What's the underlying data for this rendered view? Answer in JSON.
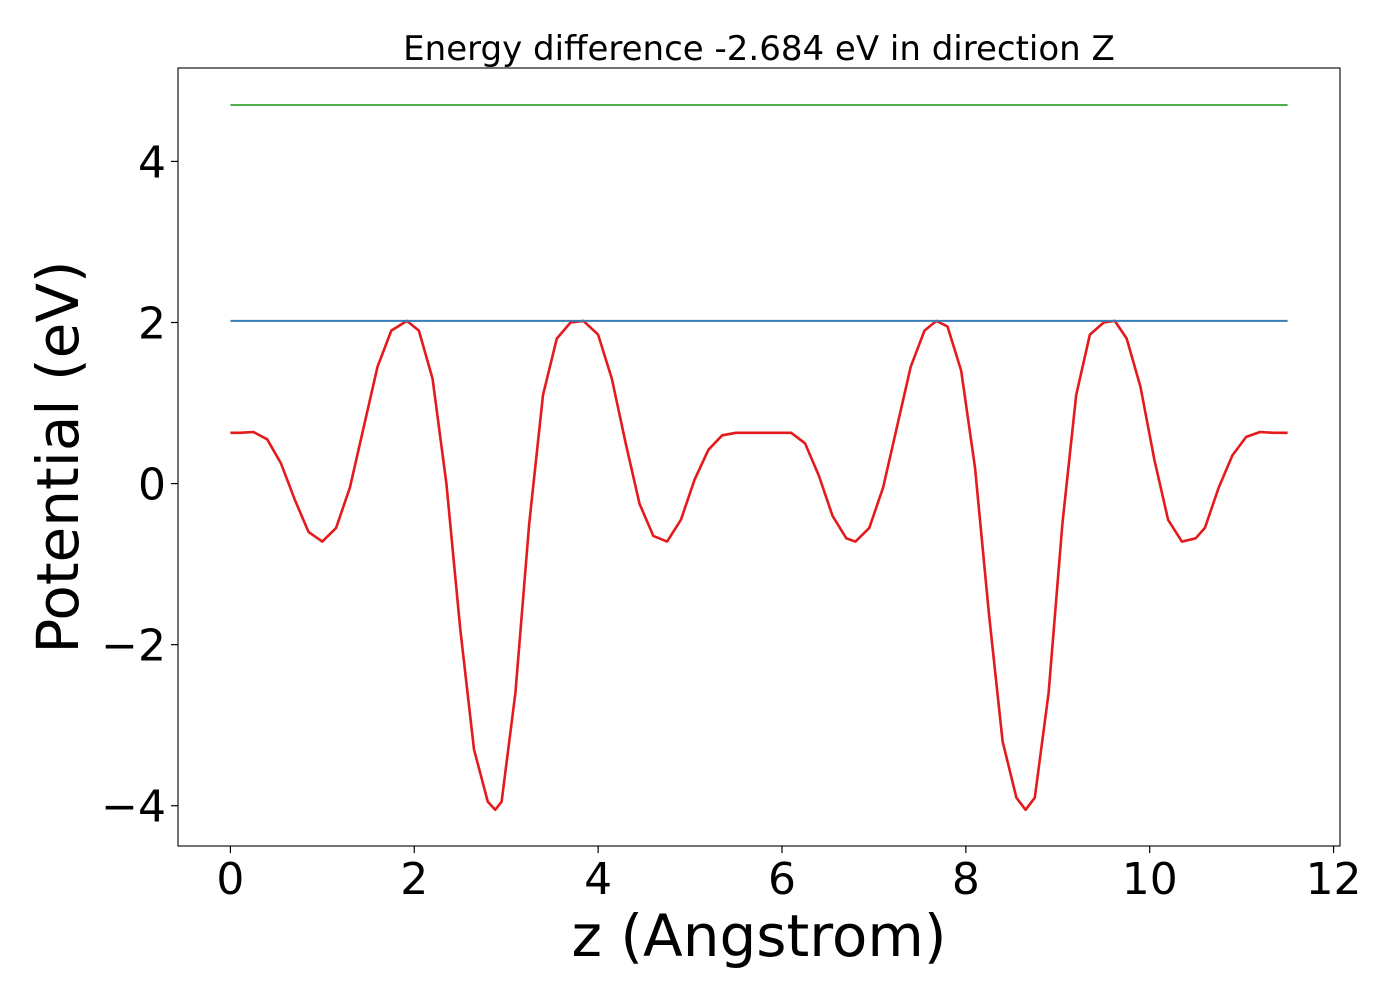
{
  "chart_data": {
    "type": "line",
    "title": "Energy difference -2.684 eV in direction Z",
    "xlabel": "z (Angstrom)",
    "ylabel": "Potential (eV)",
    "xlim": [
      -0.57,
      12.07
    ],
    "ylim": [
      -4.5,
      5.16
    ],
    "xticks": [
      0,
      2,
      4,
      6,
      8,
      10,
      12
    ],
    "xtick_labels": [
      "0",
      "2",
      "4",
      "6",
      "8",
      "10",
      "12"
    ],
    "yticks": [
      -4,
      -2,
      0,
      2,
      4
    ],
    "ytick_labels": [
      "−4",
      "−2",
      "0",
      "2",
      "4"
    ],
    "grid": false,
    "series": [
      {
        "color": "#e41a1c",
        "x": [
          0,
          0.1,
          0.25,
          0.4,
          0.55,
          0.7,
          0.85,
          1.0,
          1.15,
          1.3,
          1.45,
          1.6,
          1.75,
          1.92,
          2.05,
          2.2,
          2.35,
          2.5,
          2.65,
          2.8,
          2.88,
          2.95,
          3.1,
          3.25,
          3.4,
          3.55,
          3.7,
          3.84,
          4.0,
          4.15,
          4.3,
          4.45,
          4.6,
          4.75,
          4.9,
          5.05,
          5.2,
          5.35,
          5.5,
          5.65,
          5.8,
          5.95,
          6.1,
          6.25,
          6.4,
          6.55,
          6.7,
          6.8,
          6.95,
          7.1,
          7.25,
          7.4,
          7.55,
          7.68,
          7.8,
          7.95,
          8.1,
          8.25,
          8.4,
          8.55,
          8.65,
          8.75,
          8.9,
          9.05,
          9.2,
          9.35,
          9.5,
          9.62,
          9.75,
          9.9,
          10.05,
          10.2,
          10.35,
          10.5,
          10.6,
          10.75,
          10.9,
          11.05,
          11.2,
          11.35,
          11.5
        ],
        "y": [
          0.63,
          0.63,
          0.64,
          0.55,
          0.25,
          -0.2,
          -0.6,
          -0.72,
          -0.55,
          -0.05,
          0.7,
          1.45,
          1.9,
          2.02,
          1.9,
          1.3,
          0.0,
          -1.8,
          -3.3,
          -3.95,
          -4.05,
          -3.95,
          -2.6,
          -0.5,
          1.1,
          1.8,
          2.0,
          2.02,
          1.85,
          1.3,
          0.5,
          -0.25,
          -0.65,
          -0.72,
          -0.45,
          0.05,
          0.42,
          0.6,
          0.63,
          0.63,
          0.63,
          0.63,
          0.63,
          0.5,
          0.1,
          -0.4,
          -0.68,
          -0.72,
          -0.55,
          -0.05,
          0.7,
          1.45,
          1.9,
          2.02,
          1.95,
          1.4,
          0.2,
          -1.6,
          -3.2,
          -3.9,
          -4.05,
          -3.9,
          -2.6,
          -0.5,
          1.1,
          1.85,
          2.0,
          2.02,
          1.8,
          1.2,
          0.3,
          -0.45,
          -0.72,
          -0.68,
          -0.55,
          -0.05,
          0.35,
          0.58,
          0.64,
          0.63,
          0.63
        ]
      },
      {
        "color": "#377eb8",
        "x": [
          0,
          11.5
        ],
        "y": [
          2.02,
          2.02
        ]
      },
      {
        "color": "#4daf4a",
        "x": [
          0,
          11.5
        ],
        "y": [
          4.7,
          4.7
        ]
      }
    ]
  }
}
